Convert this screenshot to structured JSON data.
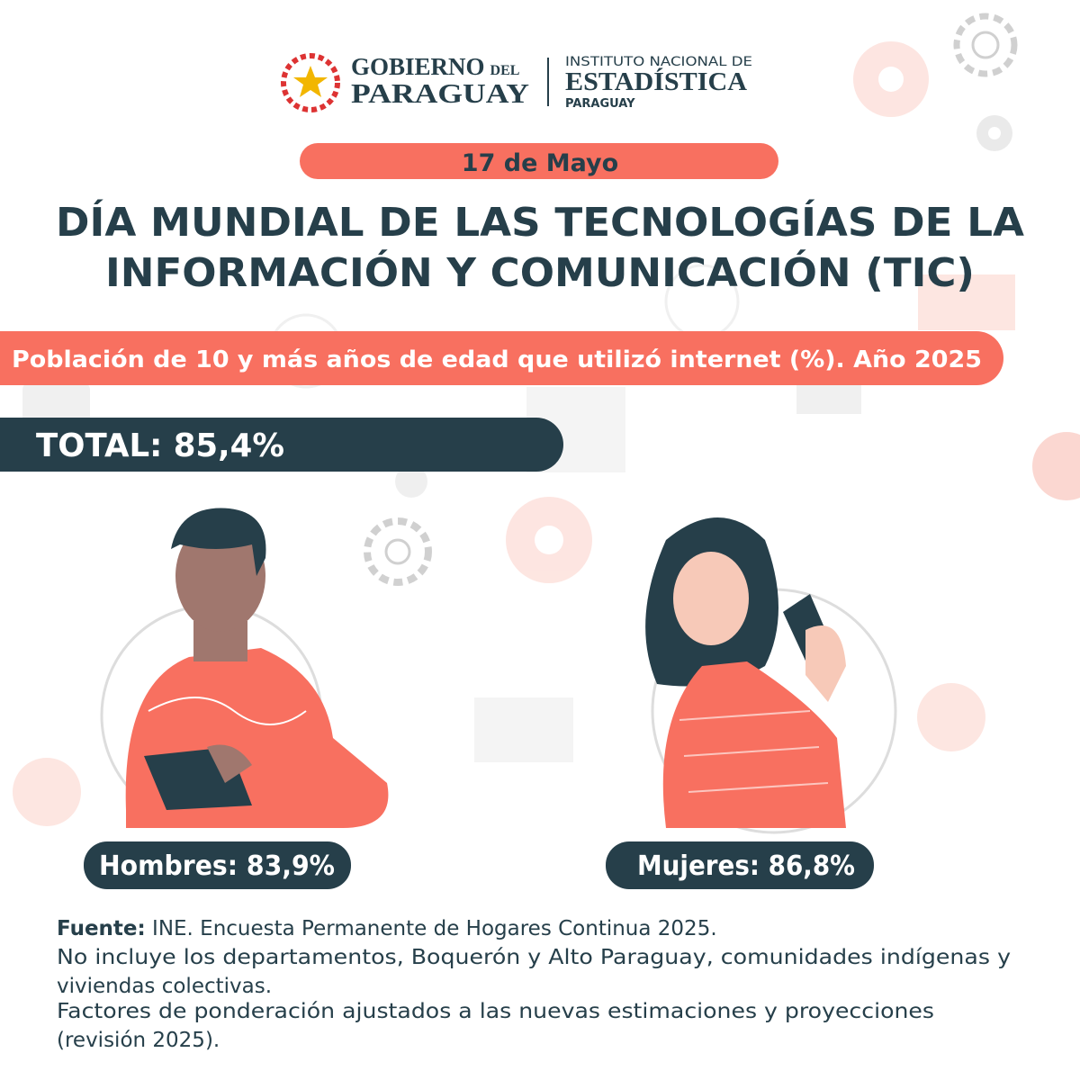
{
  "header": {
    "gobierno": {
      "line1": "GOBIERNO",
      "del": "DEL",
      "line2": "PARAGUAY"
    },
    "ine": {
      "line1": "INSTITUTO NACIONAL DE",
      "line2": "ESTADÍSTICA",
      "line3": "PARAGUAY"
    }
  },
  "date": "17 de Mayo",
  "title": [
    "DÍA MUNDIAL DE LAS TECNOLOGÍAS DE LA",
    "INFORMACIÓN Y COMUNICACIÓN (TIC)"
  ],
  "subtitle": "Población de 10 y más años de edad que utilizó internet (%). Año 2025",
  "total": "TOTAL: 85,4%",
  "groups": [
    {
      "label": "Hombres: 83,9%"
    },
    {
      "label": "Mujeres: 86,8%"
    }
  ],
  "footnote": {
    "source_label": "Fuente:",
    "source": " INE. Encuesta Permanente de Hogares Continua 2025.",
    "lines": [
      "No incluye los departamentos, Boquerón y Alto Paraguay, comunidades indígenas y",
      "viviendas colectivas.",
      "Factores de ponderación ajustados a las nuevas estimaciones y proyecciones",
      "(revisión 2025)."
    ]
  }
}
